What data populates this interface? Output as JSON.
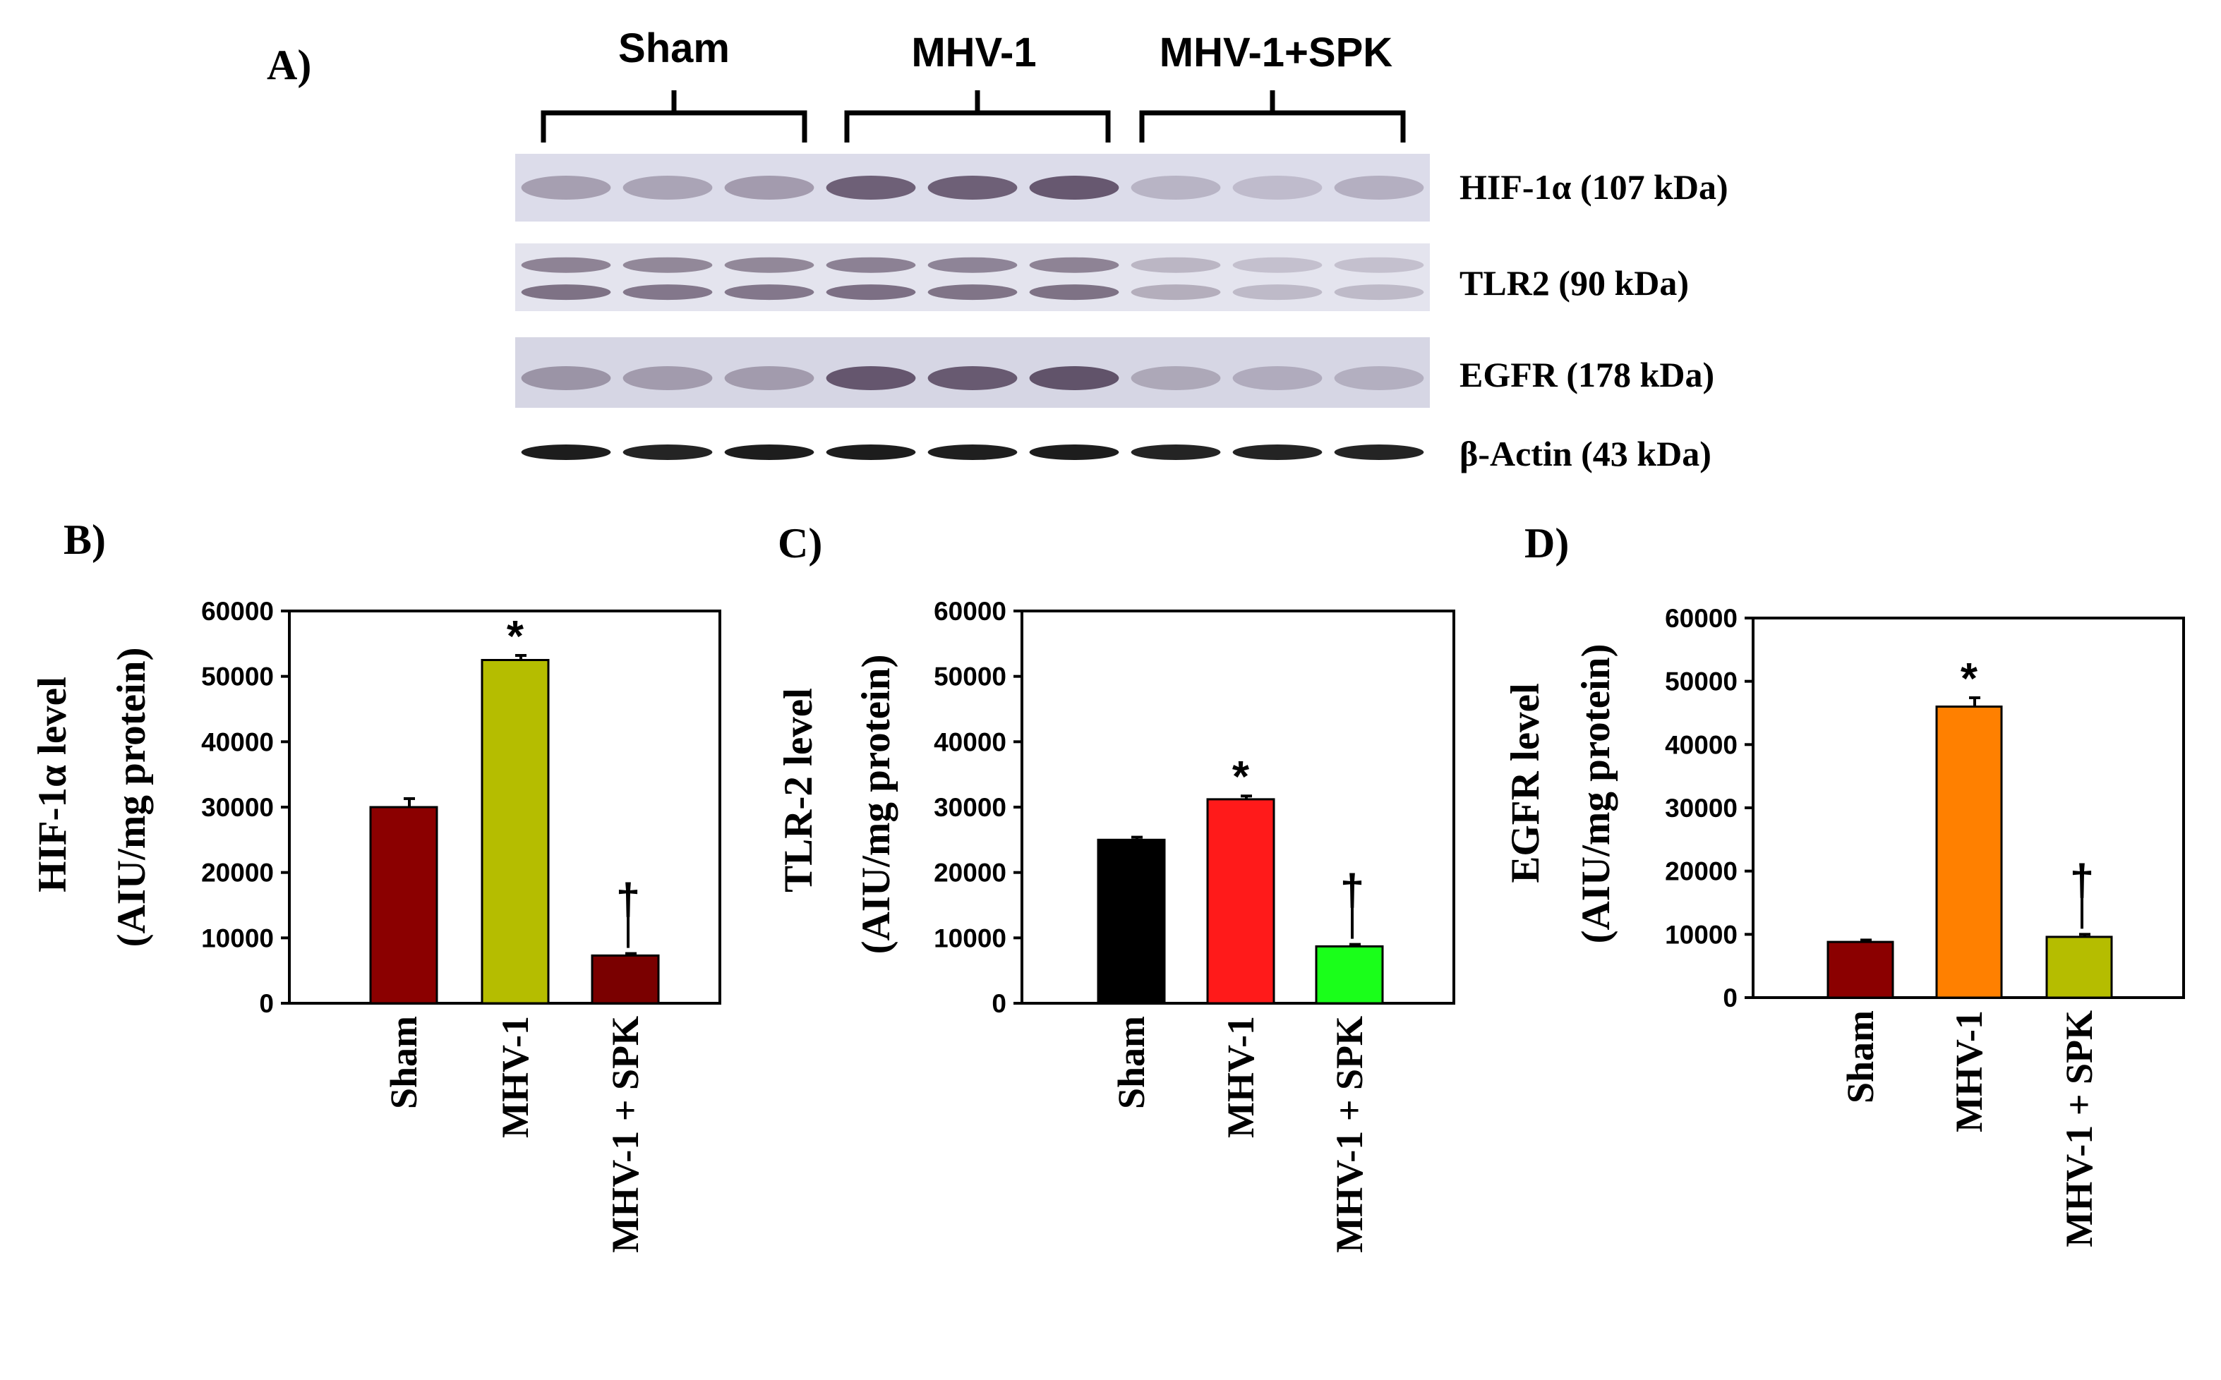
{
  "blot": {
    "panel_label": "A)",
    "groups": [
      "Sham",
      "MHV-1",
      "MHV-1+SPK"
    ],
    "bands": [
      {
        "label": "HIF-1α (107 kDa)",
        "intensity": [
          0.3,
          0.28,
          0.32,
          0.62,
          0.62,
          0.66,
          0.2,
          0.16,
          0.22
        ]
      },
      {
        "label": "TLR2 (90 kDa)",
        "intensity": [
          0.55,
          0.52,
          0.52,
          0.56,
          0.54,
          0.55,
          0.26,
          0.2,
          0.2
        ]
      },
      {
        "label": "EGFR (178 kDa)",
        "intensity": [
          0.34,
          0.3,
          0.3,
          0.66,
          0.64,
          0.68,
          0.24,
          0.22,
          0.2
        ]
      },
      {
        "label": "β-Actin (43 kDa)",
        "intensity": [
          0.95,
          0.92,
          0.95,
          0.95,
          0.94,
          0.95,
          0.92,
          0.92,
          0.92
        ]
      }
    ]
  },
  "chart_data": [
    {
      "type": "bar",
      "panel_label": "B)",
      "ylabel_line1": "HIF-1α level",
      "ylabel_line2": "(AIU/mg protein)",
      "categories": [
        "Sham",
        "MHV-1",
        "MHV-1 + SPK"
      ],
      "values": [
        30000,
        52500,
        7300
      ],
      "errors": [
        1300,
        700,
        300
      ],
      "markers": [
        "",
        "*",
        "†"
      ],
      "colors": [
        "#8b0000",
        "#b5bd00",
        "#7a0000"
      ],
      "ylim": [
        0,
        60000
      ],
      "yticks": [
        "0",
        "10000",
        "20000",
        "30000",
        "40000",
        "50000",
        "60000"
      ]
    },
    {
      "type": "bar",
      "panel_label": "C)",
      "ylabel_line1": "TLR-2 level",
      "ylabel_line2": "(AIU/mg protein)",
      "categories": [
        "Sham",
        "MHV-1",
        "MHV-1 + SPK"
      ],
      "values": [
        25000,
        31200,
        8700
      ],
      "errors": [
        400,
        500,
        300
      ],
      "markers": [
        "",
        "*",
        "†"
      ],
      "colors": [
        "#000000",
        "#ff1a1a",
        "#1aff1a"
      ],
      "ylim": [
        0,
        60000
      ],
      "yticks": [
        "0",
        "10000",
        "20000",
        "30000",
        "40000",
        "50000",
        "60000"
      ]
    },
    {
      "type": "bar",
      "panel_label": "D)",
      "ylabel_line1": "EGFR level",
      "ylabel_line2": "(AIU/mg protein)",
      "categories": [
        "Sham",
        "MHV-1",
        "MHV-1 + SPK"
      ],
      "values": [
        8800,
        46000,
        9600
      ],
      "errors": [
        300,
        1400,
        400
      ],
      "markers": [
        "",
        "*",
        "†"
      ],
      "colors": [
        "#8b0000",
        "#ff8000",
        "#b5bd00"
      ],
      "ylim": [
        0,
        60000
      ],
      "yticks": [
        "0",
        "10000",
        "20000",
        "30000",
        "40000",
        "50000",
        "60000"
      ]
    }
  ]
}
